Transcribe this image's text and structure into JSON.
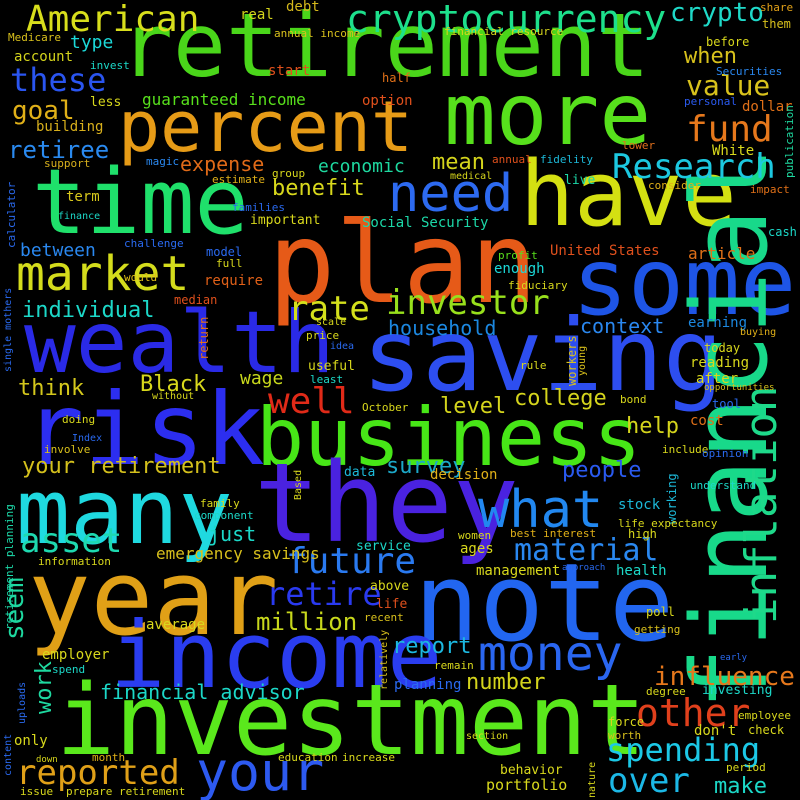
{
  "words": [
    {
      "text": "retirement",
      "color": "#4ad61a"
    },
    {
      "text": "percent",
      "color": "#e69b17"
    },
    {
      "text": "more",
      "color": "#57e01c"
    },
    {
      "text": "time",
      "color": "#1fe06b"
    },
    {
      "text": "have",
      "color": "#d4e012"
    },
    {
      "text": "plan",
      "color": "#e65a18"
    },
    {
      "text": "some",
      "color": "#1e55e6"
    },
    {
      "text": "wealth",
      "color": "#2a2ae6"
    },
    {
      "text": "saving",
      "color": "#2d4ef0"
    },
    {
      "text": "risk",
      "color": "#2c2ef0"
    },
    {
      "text": "business",
      "color": "#47e617"
    },
    {
      "text": "they",
      "color": "#4a22e0"
    },
    {
      "text": "many",
      "color": "#1fd9e0"
    },
    {
      "text": "year",
      "color": "#e0a017"
    },
    {
      "text": "note",
      "color": "#2266f0"
    },
    {
      "text": "income",
      "color": "#2a3df0"
    },
    {
      "text": "investment",
      "color": "#5ae81c"
    },
    {
      "text": "your",
      "color": "#18d98a"
    },
    {
      "text": "financial",
      "color": "#2d5af0"
    },
    {
      "text": "market",
      "color": "#d4dc1c"
    },
    {
      "text": "American",
      "color": "#d8de1c"
    },
    {
      "text": "cryptocurrency",
      "color": "#1de08c"
    },
    {
      "text": "crypto",
      "color": "#1fd9c8"
    },
    {
      "text": "these",
      "color": "#2a55f0"
    },
    {
      "text": "need",
      "color": "#2d6af0"
    },
    {
      "text": "inflation",
      "color": "#1ed98a"
    },
    {
      "text": "Research",
      "color": "#1cc8e0"
    },
    {
      "text": "fund",
      "color": "#e6781c"
    },
    {
      "text": "value",
      "color": "#d8c21c"
    },
    {
      "text": "investor",
      "color": "#98e01c"
    },
    {
      "text": "rate",
      "color": "#d4e01c"
    },
    {
      "text": "what",
      "color": "#2288f0"
    },
    {
      "text": "future",
      "color": "#2a7af0"
    },
    {
      "text": "retire",
      "color": "#2a3af0"
    },
    {
      "text": "money",
      "color": "#2a66f0"
    },
    {
      "text": "material",
      "color": "#2a88f0"
    },
    {
      "text": "asset",
      "color": "#1ed9b0"
    },
    {
      "text": "spending",
      "color": "#1cc8e6"
    },
    {
      "text": "other",
      "color": "#e0401c"
    },
    {
      "text": "influence",
      "color": "#e6781c"
    },
    {
      "text": "reported",
      "color": "#e0a018"
    },
    {
      "text": "well",
      "color": "#e02a18"
    },
    {
      "text": "over",
      "color": "#1cb8e6"
    },
    {
      "text": "make",
      "color": "#1cd8c8"
    },
    {
      "text": "when",
      "color": "#d8c21c"
    },
    {
      "text": "goal",
      "color": "#e0b018"
    },
    {
      "text": "retiree",
      "color": "#2a8af0"
    },
    {
      "text": "guaranteed income",
      "color": "#58e01c"
    },
    {
      "text": "economic",
      "color": "#1ed9a0"
    },
    {
      "text": "mean",
      "color": "#d4d41c"
    },
    {
      "text": "benefit",
      "color": "#d8d81c"
    },
    {
      "text": "expense",
      "color": "#e06a18"
    },
    {
      "text": "individual",
      "color": "#1cd8c8"
    },
    {
      "text": "between",
      "color": "#2a88f0"
    },
    {
      "text": "context",
      "color": "#2a88f0"
    },
    {
      "text": "household",
      "color": "#1c88e0"
    },
    {
      "text": "think",
      "color": "#d4c81c"
    },
    {
      "text": "Black",
      "color": "#d8d81c"
    },
    {
      "text": "wage",
      "color": "#c8d81c"
    },
    {
      "text": "level",
      "color": "#d4d41c"
    },
    {
      "text": "college",
      "color": "#d4d41c"
    },
    {
      "text": "help",
      "color": "#d4d41c"
    },
    {
      "text": "your retirement",
      "color": "#d4c01c"
    },
    {
      "text": "survey",
      "color": "#1ca8c8"
    },
    {
      "text": "people",
      "color": "#2a5af0"
    },
    {
      "text": "emergency savings",
      "color": "#d8c01c"
    },
    {
      "text": "just",
      "color": "#1cd8c8"
    },
    {
      "text": "report",
      "color": "#1cb8e0"
    },
    {
      "text": "million",
      "color": "#c8d81c"
    },
    {
      "text": "financial advisor",
      "color": "#1cd8c8"
    },
    {
      "text": "number",
      "color": "#d4d41c"
    },
    {
      "text": "seem",
      "color": "#1ed9a0"
    },
    {
      "text": "work",
      "color": "#1ed9a0"
    },
    {
      "text": "Medicare",
      "color": "#d8c01c"
    },
    {
      "text": "real",
      "color": "#d4d41c"
    },
    {
      "text": "debt",
      "color": "#d4b81c"
    },
    {
      "text": "type",
      "color": "#1cd8d8"
    },
    {
      "text": "account",
      "color": "#d4d41c"
    },
    {
      "text": "invest",
      "color": "#1cd8c8"
    },
    {
      "text": "annual income",
      "color": "#d8c01c"
    },
    {
      "text": "financial resource",
      "color": "#d8d81c"
    },
    {
      "text": "start",
      "color": "#e0501c"
    },
    {
      "text": "half",
      "color": "#e07018"
    },
    {
      "text": "option",
      "color": "#e0501c"
    },
    {
      "text": "Securities",
      "color": "#2a88f0"
    },
    {
      "text": "personal",
      "color": "#2a5af0"
    },
    {
      "text": "dollar",
      "color": "#e07018"
    },
    {
      "text": "before",
      "color": "#d8d81c"
    },
    {
      "text": "share",
      "color": "#e0a018"
    },
    {
      "text": "them",
      "color": "#d8c01c"
    },
    {
      "text": "publication",
      "color": "#1ed9a0"
    },
    {
      "text": "less",
      "color": "#d8d81c"
    },
    {
      "text": "building",
      "color": "#d8b01c"
    },
    {
      "text": "support",
      "color": "#d8b01c"
    },
    {
      "text": "magic",
      "color": "#2a88f0"
    },
    {
      "text": "annual",
      "color": "#e0501c"
    },
    {
      "text": "fidelity",
      "color": "#1cb8d8"
    },
    {
      "text": "lower",
      "color": "#e0701c"
    },
    {
      "text": "White",
      "color": "#d8d81c"
    },
    {
      "text": "estimate",
      "color": "#e0b018"
    },
    {
      "text": "group",
      "color": "#d8d81c"
    },
    {
      "text": "medical",
      "color": "#d8d81c"
    },
    {
      "text": "live",
      "color": "#1cd8a8"
    },
    {
      "text": "consider",
      "color": "#e0b018"
    },
    {
      "text": "impact",
      "color": "#e07018"
    },
    {
      "text": "term",
      "color": "#d8c81c"
    },
    {
      "text": "families",
      "color": "#2a6af0"
    },
    {
      "text": "finance",
      "color": "#1cd8c8"
    },
    {
      "text": "important",
      "color": "#d8d81c"
    },
    {
      "text": "Social Security",
      "color": "#1cd8a8"
    },
    {
      "text": "challenge",
      "color": "#2a6af0"
    },
    {
      "text": "model",
      "color": "#2a6af0"
    },
    {
      "text": "full",
      "color": "#d8d81c"
    },
    {
      "text": "United States",
      "color": "#e0501c"
    },
    {
      "text": "article",
      "color": "#e07018"
    },
    {
      "text": "cash",
      "color": "#1cd8c8"
    },
    {
      "text": "calculator",
      "color": "#2a6af0"
    },
    {
      "text": "would",
      "color": "#e0c018"
    },
    {
      "text": "require",
      "color": "#e06018"
    },
    {
      "text": "profit",
      "color": "#58e01c"
    },
    {
      "text": "enough",
      "color": "#1cd8d8"
    },
    {
      "text": "fiduciary",
      "color": "#d8d81c"
    },
    {
      "text": "median",
      "color": "#e0501c"
    },
    {
      "text": "return",
      "color": "#e0701c"
    },
    {
      "text": "scale",
      "color": "#d8d81c"
    },
    {
      "text": "price",
      "color": "#d8d81c"
    },
    {
      "text": "idea",
      "color": "#2a6af0"
    },
    {
      "text": "useful",
      "color": "#d8d81c"
    },
    {
      "text": "least",
      "color": "#1cd8c8"
    },
    {
      "text": "rule",
      "color": "#d8d81c"
    },
    {
      "text": "workers",
      "color": "#d8c01c"
    },
    {
      "text": "young",
      "color": "#d8c01c"
    },
    {
      "text": "earning",
      "color": "#1c88e0"
    },
    {
      "text": "buying",
      "color": "#e0b018"
    },
    {
      "text": "today",
      "color": "#d8d81c"
    },
    {
      "text": "reading",
      "color": "#d8d81c"
    },
    {
      "text": "after",
      "color": "#d8d81c"
    },
    {
      "text": "opportunities",
      "color": "#d8c01c"
    },
    {
      "text": "tool",
      "color": "#2a6af0"
    },
    {
      "text": "single mothers",
      "color": "#2a6af0"
    },
    {
      "text": "without",
      "color": "#d8d81c"
    },
    {
      "text": "October",
      "color": "#d8d81c"
    },
    {
      "text": "bond",
      "color": "#d8d81c"
    },
    {
      "text": "doing",
      "color": "#d8d81c"
    },
    {
      "text": "Index",
      "color": "#2a6af0"
    },
    {
      "text": "involve",
      "color": "#d8c01c"
    },
    {
      "text": "cost",
      "color": "#e07018"
    },
    {
      "text": "include",
      "color": "#d8d81c"
    },
    {
      "text": "opinion",
      "color": "#2a6af0"
    },
    {
      "text": "Based",
      "color": "#d8d81c"
    },
    {
      "text": "data",
      "color": "#1cb8d8"
    },
    {
      "text": "decision",
      "color": "#e0b018"
    },
    {
      "text": "understand",
      "color": "#1cd8c8"
    },
    {
      "text": "retirement planning",
      "color": "#1cd8a8"
    },
    {
      "text": "family",
      "color": "#d8d81c"
    },
    {
      "text": "component",
      "color": "#1cd8c8"
    },
    {
      "text": "stock",
      "color": "#1cb8d8"
    },
    {
      "text": "working",
      "color": "#1cb8d8"
    },
    {
      "text": "life expectancy",
      "color": "#d8d81c"
    },
    {
      "text": "women",
      "color": "#d8d81c"
    },
    {
      "text": "best interest",
      "color": "#e0b018"
    },
    {
      "text": "high",
      "color": "#d8d81c"
    },
    {
      "text": "service",
      "color": "#1cd8c8"
    },
    {
      "text": "ages",
      "color": "#d8d81c"
    },
    {
      "text": "information",
      "color": "#d8d81c"
    },
    {
      "text": "management",
      "color": "#d8d81c"
    },
    {
      "text": "health",
      "color": "#1cd8c8"
    },
    {
      "text": "approach",
      "color": "#2a6af0"
    },
    {
      "text": "above",
      "color": "#d8d81c"
    },
    {
      "text": "life",
      "color": "#e0501c"
    },
    {
      "text": "recent",
      "color": "#d8c01c"
    },
    {
      "text": "poll",
      "color": "#d8d81c"
    },
    {
      "text": "getting",
      "color": "#d8c01c"
    },
    {
      "text": "average",
      "color": "#d8d81c"
    },
    {
      "text": "employer",
      "color": "#d8d81c"
    },
    {
      "text": "relatively",
      "color": "#d8c01c"
    },
    {
      "text": "remain",
      "color": "#d8d81c"
    },
    {
      "text": "spend",
      "color": "#1cd8c8"
    },
    {
      "text": "uploads",
      "color": "#2a6af0"
    },
    {
      "text": "content",
      "color": "#2a6af0"
    },
    {
      "text": "only",
      "color": "#d8d81c"
    },
    {
      "text": "planning",
      "color": "#2a6af0"
    },
    {
      "text": "degree",
      "color": "#d8d81c"
    },
    {
      "text": "investing",
      "color": "#1cd8c8"
    },
    {
      "text": "early",
      "color": "#2a6af0"
    },
    {
      "text": "employee",
      "color": "#d8d81c"
    },
    {
      "text": "force",
      "color": "#d8d81c"
    },
    {
      "text": "don't",
      "color": "#d8d81c"
    },
    {
      "text": "worth",
      "color": "#d8c01c"
    },
    {
      "text": "check",
      "color": "#d8d81c"
    },
    {
      "text": "section",
      "color": "#d8d81c"
    },
    {
      "text": "month",
      "color": "#e0b018"
    },
    {
      "text": "education",
      "color": "#d8d81c"
    },
    {
      "text": "increase",
      "color": "#d8d81c"
    },
    {
      "text": "down",
      "color": "#d8d81c"
    },
    {
      "text": "issue",
      "color": "#d8d81c"
    },
    {
      "text": "prepare retirement",
      "color": "#d8d81c"
    },
    {
      "text": "behavior",
      "color": "#d8d81c"
    },
    {
      "text": "portfolio",
      "color": "#d8d81c"
    },
    {
      "text": "nature",
      "color": "#d8d81c"
    },
    {
      "text": "period",
      "color": "#d8d81c"
    }
  ]
}
